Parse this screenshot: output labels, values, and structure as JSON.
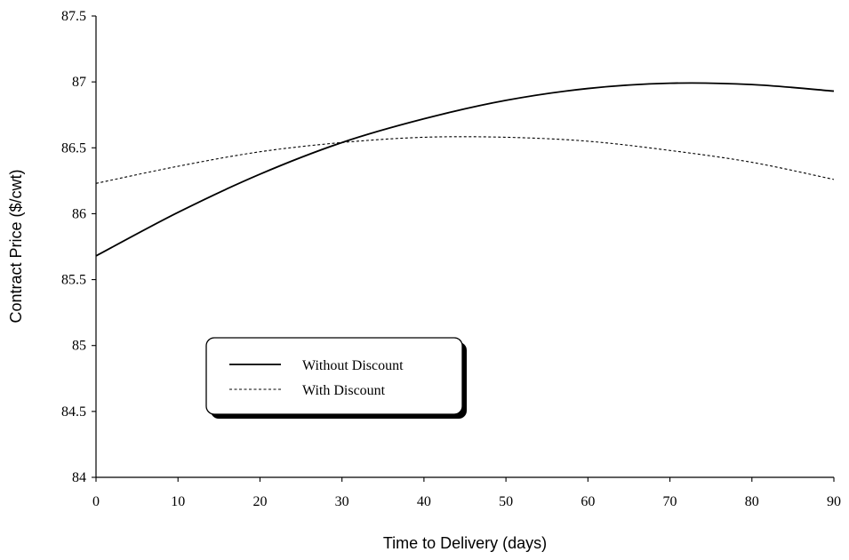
{
  "chart_data": {
    "type": "line",
    "title": "",
    "xlabel": "Time to Delivery (days)",
    "ylabel": "Contract Price ($/cwt)",
    "xlim": [
      0,
      90
    ],
    "ylim": [
      84,
      87.5
    ],
    "x_ticks": [
      "0",
      "10",
      "20",
      "30",
      "40",
      "50",
      "60",
      "70",
      "80",
      "90"
    ],
    "y_ticks": [
      "84",
      "84.5",
      "85",
      "85.5",
      "86",
      "86.5",
      "87",
      "87.5"
    ],
    "grid": false,
    "legend_position": "lower-left",
    "x": [
      0,
      10,
      20,
      30,
      40,
      50,
      60,
      70,
      80,
      90
    ],
    "series": [
      {
        "name": "Without Discount",
        "style": "solid",
        "color": "#000000",
        "values": [
          85.68,
          86.01,
          86.3,
          86.54,
          86.72,
          86.86,
          86.95,
          86.99,
          86.98,
          86.93
        ]
      },
      {
        "name": "With Discount",
        "style": "dashed",
        "color": "#000000",
        "values": [
          86.23,
          86.36,
          86.47,
          86.54,
          86.58,
          86.58,
          86.55,
          86.48,
          86.39,
          86.26
        ]
      }
    ]
  }
}
